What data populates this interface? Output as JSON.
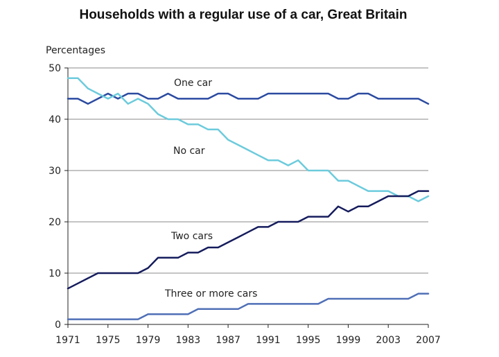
{
  "chart_data": {
    "type": "line",
    "title": "Households with a regular use of a car, Great Britain",
    "ylabel": "Percentages",
    "xlabel": "",
    "ylim": [
      0,
      50
    ],
    "xlim": [
      1971,
      2007
    ],
    "grid": true,
    "y_ticks": [
      0,
      10,
      20,
      30,
      40,
      50
    ],
    "x_ticks": [
      1971,
      1975,
      1979,
      1983,
      1987,
      1991,
      1995,
      1999,
      2003,
      2007
    ],
    "x": [
      1971,
      1972,
      1973,
      1974,
      1975,
      1976,
      1977,
      1978,
      1979,
      1980,
      1981,
      1982,
      1983,
      1984,
      1985,
      1986,
      1987,
      1988,
      1989,
      1990,
      1991,
      1992,
      1993,
      1994,
      1995,
      1996,
      1997,
      1998,
      1999,
      2000,
      2001,
      2002,
      2003,
      2004,
      2005,
      2006,
      2007
    ],
    "series": [
      {
        "name": "One car",
        "color": "#2b4aa0",
        "values": [
          44,
          44,
          43,
          44,
          45,
          44,
          45,
          45,
          44,
          44,
          45,
          44,
          44,
          44,
          44,
          45,
          45,
          44,
          44,
          44,
          45,
          45,
          45,
          45,
          45,
          45,
          45,
          44,
          44,
          45,
          45,
          44,
          44,
          44,
          44,
          44,
          43
        ]
      },
      {
        "name": "No car",
        "color": "#6ccbdc",
        "values": [
          48,
          48,
          46,
          45,
          44,
          45,
          43,
          44,
          43,
          41,
          40,
          40,
          39,
          39,
          38,
          38,
          36,
          35,
          34,
          33,
          32,
          32,
          31,
          32,
          30,
          30,
          30,
          28,
          28,
          27,
          26,
          26,
          26,
          25,
          25,
          24,
          25
        ]
      },
      {
        "name": "Two cars",
        "color": "#151c5c",
        "values": [
          7,
          8,
          9,
          10,
          10,
          10,
          10,
          10,
          11,
          13,
          13,
          13,
          14,
          14,
          15,
          15,
          16,
          17,
          18,
          19,
          19,
          20,
          20,
          20,
          21,
          21,
          21,
          23,
          22,
          23,
          23,
          24,
          25,
          25,
          25,
          26,
          26
        ]
      },
      {
        "name": "Three or more cars",
        "color": "#4f6fb6",
        "values": [
          1,
          1,
          1,
          1,
          1,
          1,
          1,
          1,
          2,
          2,
          2,
          2,
          2,
          3,
          3,
          3,
          3,
          3,
          4,
          4,
          4,
          4,
          4,
          4,
          4,
          4,
          5,
          5,
          5,
          5,
          5,
          5,
          5,
          5,
          5,
          6,
          6
        ]
      }
    ]
  }
}
